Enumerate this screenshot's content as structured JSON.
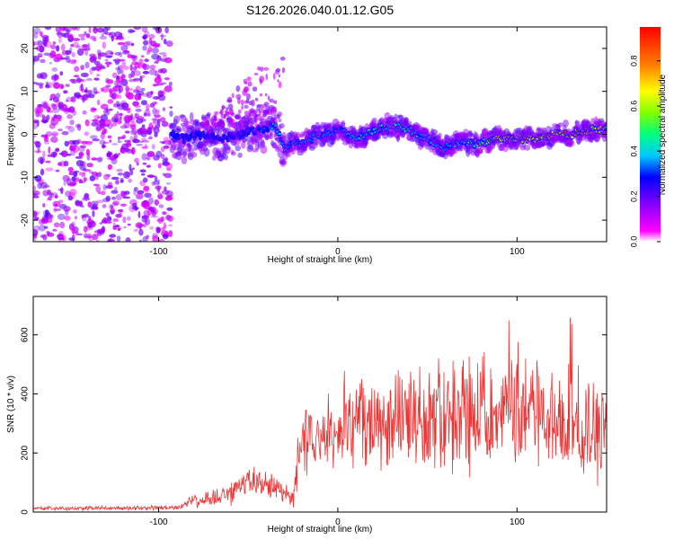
{
  "figure_title": "S126.2026.040.01.12.G05",
  "chart_data": [
    {
      "type": "heatmap",
      "title": "S126.2026.040.01.12.G05",
      "xlabel": "Height of straight line (km)",
      "ylabel": "Frequency (Hz)",
      "xlim": [
        -170,
        150
      ],
      "ylim": [
        -25,
        25
      ],
      "xticks": [
        "-100",
        "0",
        "100"
      ],
      "yticks": [
        "20",
        "10",
        "0",
        "-10",
        "-20"
      ],
      "colorbar": {
        "label": "Normalized spectral amplitude",
        "range": [
          0,
          0.95
        ],
        "ticks": [
          "0.0",
          "0.2",
          "0.4",
          "0.6",
          "0.8"
        ],
        "colormap": [
          "#ffffff",
          "#ff00ff",
          "#8000ff",
          "#0000ff",
          "#00c8ff",
          "#00ff80",
          "#80ff00",
          "#ffff00",
          "#ff8000",
          "#ff0000"
        ]
      },
      "noise_region_x": [
        -170,
        -93
      ],
      "signal_track": {
        "x": [
          -93,
          -85,
          -75,
          -65,
          -55,
          -45,
          -35,
          -30,
          -20,
          -10,
          0,
          10,
          20,
          30,
          40,
          50,
          60,
          70,
          80,
          90,
          100,
          110,
          120,
          130,
          140,
          150
        ],
        "freq": [
          0,
          -1,
          0,
          -1,
          0,
          1,
          2,
          -3,
          -2,
          0,
          1,
          -1,
          1,
          2,
          1,
          -1,
          -3,
          -2,
          -2,
          -1,
          -1,
          -1,
          0,
          0,
          1,
          1
        ],
        "amplitude": [
          0.35,
          0.35,
          0.3,
          0.3,
          0.3,
          0.35,
          0.4,
          0.45,
          0.45,
          0.45,
          0.45,
          0.45,
          0.5,
          0.55,
          0.5,
          0.45,
          0.4,
          0.45,
          0.6,
          0.75,
          0.8,
          0.85,
          0.9,
          0.95,
          0.85,
          0.7
        ]
      }
    },
    {
      "type": "line",
      "xlabel": "Height of straight line (km)",
      "ylabel": "SNR (10 * v/v)",
      "xlim": [
        -170,
        150
      ],
      "ylim": [
        0,
        730
      ],
      "xticks": [
        "-100",
        "0",
        "100"
      ],
      "yticks": [
        "0",
        "200",
        "400",
        "600"
      ],
      "color": "#ee3333",
      "series": [
        {
          "name": "SNR",
          "x": [
            -170,
            -150,
            -130,
            -110,
            -90,
            -80,
            -70,
            -60,
            -50,
            -40,
            -30,
            -25,
            -20,
            -10,
            0,
            10,
            20,
            30,
            40,
            50,
            60,
            70,
            80,
            90,
            100,
            110,
            120,
            130,
            140,
            150
          ],
          "values": [
            12,
            12,
            13,
            13,
            14,
            40,
            45,
            60,
            100,
            110,
            60,
            40,
            240,
            260,
            280,
            300,
            300,
            310,
            310,
            320,
            330,
            340,
            330,
            330,
            330,
            340,
            320,
            300,
            280,
            260
          ],
          "amplitude": [
            6,
            6,
            6,
            6,
            7,
            20,
            25,
            35,
            45,
            45,
            30,
            25,
            90,
            100,
            110,
            120,
            130,
            140,
            150,
            150,
            160,
            170,
            160,
            150,
            150,
            150,
            150,
            150,
            150,
            140
          ]
        }
      ]
    }
  ]
}
